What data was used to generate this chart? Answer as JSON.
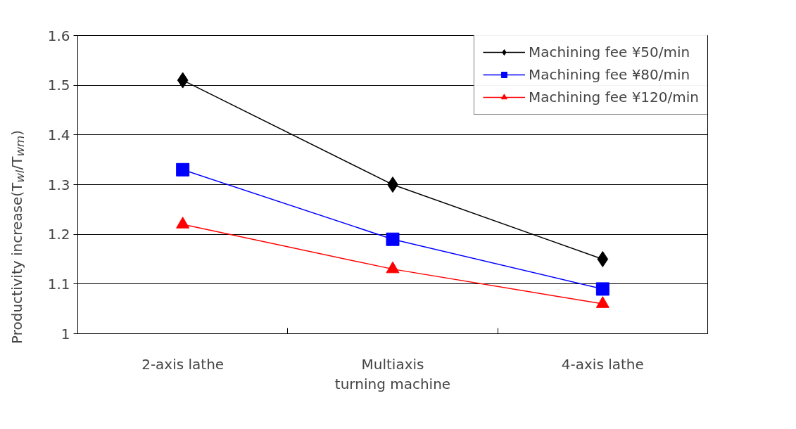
{
  "chart_data": {
    "type": "line",
    "ylabel": "Productivity increase(T$_{wl}$/T$_{wm}$)",
    "categories": [
      "2-axis lathe",
      "Multiaxis\nturning machine",
      "4-axis lathe"
    ],
    "ylim": [
      1,
      1.6
    ],
    "yticks": [
      1,
      1.1,
      1.2,
      1.3,
      1.4,
      1.5,
      1.6
    ],
    "grid": "y",
    "legend": "top right",
    "series": [
      {
        "name": "Machining fee ¥50/min",
        "color": "#000000",
        "marker": "diamond",
        "values": [
          1.51,
          1.3,
          1.15
        ]
      },
      {
        "name": "Machining fee ¥80/min",
        "color": "#0000ff",
        "marker": "square",
        "values": [
          1.33,
          1.19,
          1.09
        ]
      },
      {
        "name": "Machining fee ¥120/min",
        "color": "#ff0000",
        "marker": "triangle",
        "values": [
          1.22,
          1.13,
          1.06
        ]
      }
    ]
  }
}
